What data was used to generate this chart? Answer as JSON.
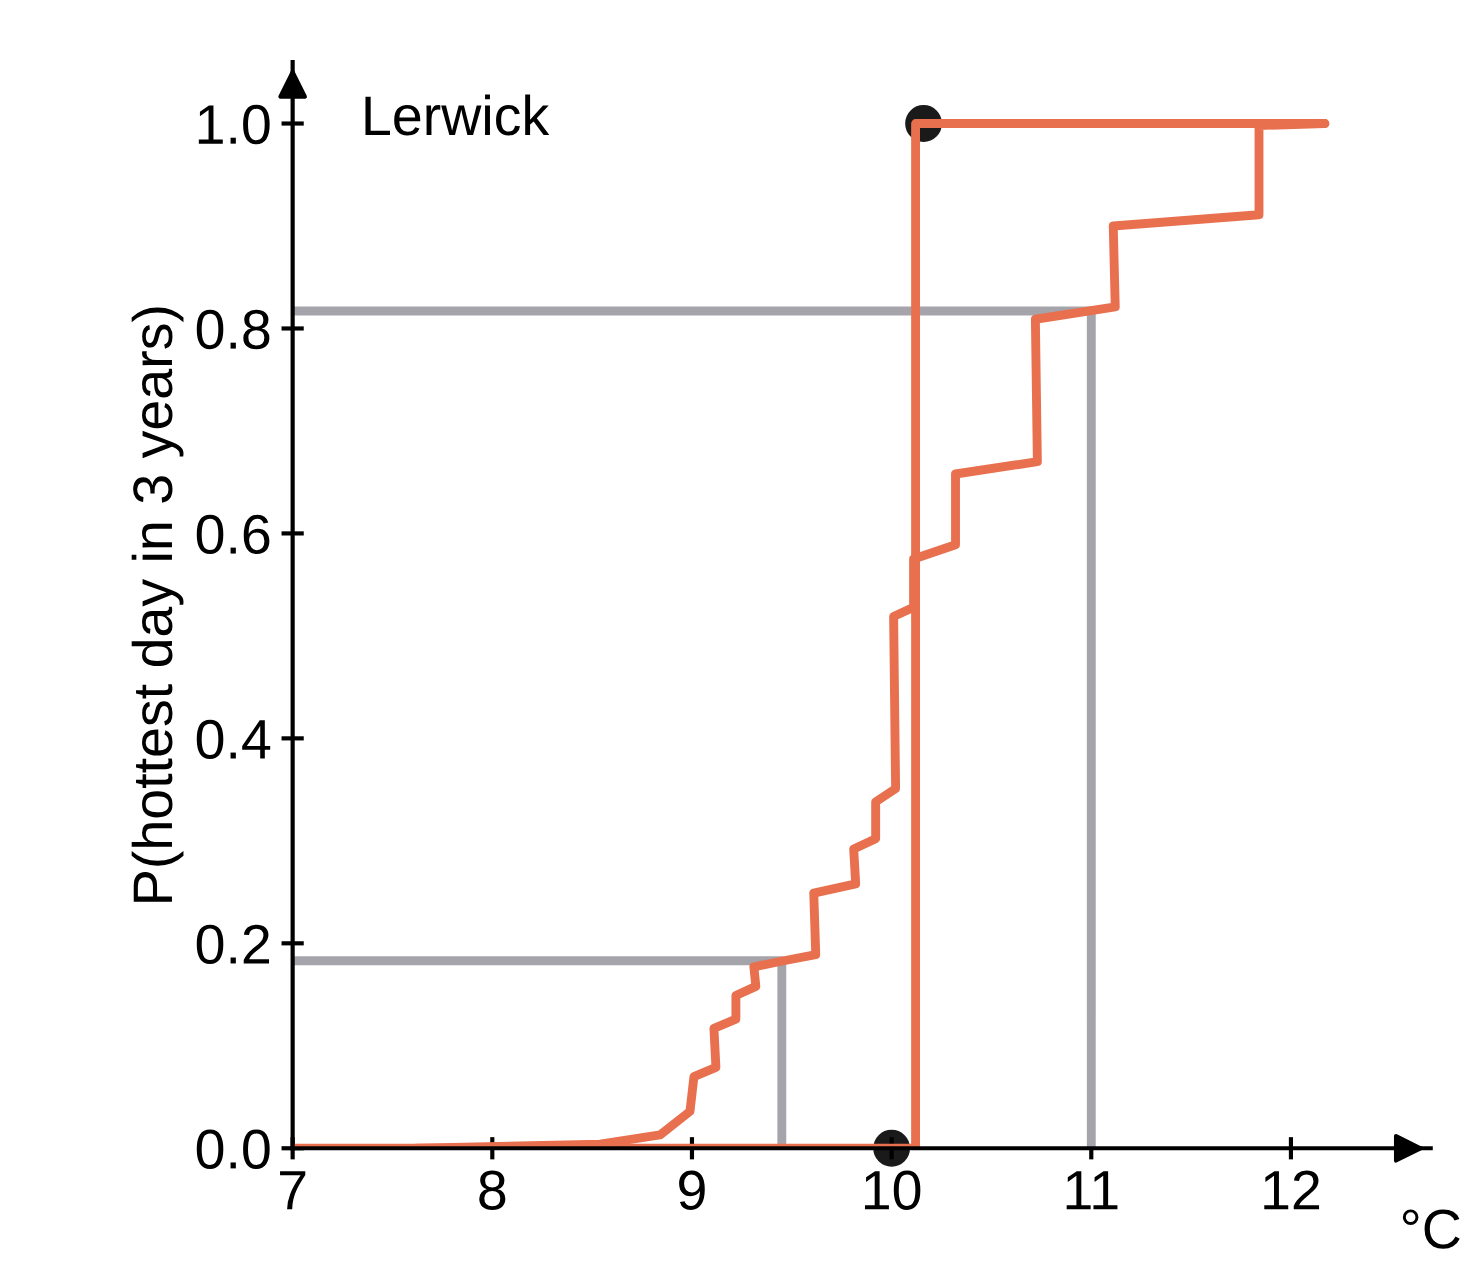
{
  "chart_data": {
    "type": "line",
    "ylabel": "P(hottest day in 3 years)",
    "xlabel": "°C",
    "annotations": [
      "Lerwick"
    ],
    "xlim": [
      7,
      12.7
    ],
    "ylim": [
      0,
      1.06
    ],
    "xticks": [
      7,
      8,
      9,
      10,
      11,
      12
    ],
    "yticks": [
      {
        "value": 0,
        "label": "0.0"
      },
      {
        "value": 0.2,
        "label": "0.2"
      },
      {
        "value": 0.4,
        "label": "0.4"
      },
      {
        "value": 0.6,
        "label": "0.6"
      },
      {
        "value": 0.8,
        "label": "0.8"
      },
      {
        "value": 1.0,
        "label": "1.0"
      }
    ],
    "grid": false,
    "legend": false,
    "series": [
      {
        "color": "#a5a4ab",
        "x": [
          7,
          9.45,
          9.45
        ],
        "values": [
          0.183,
          0.183,
          0
        ]
      },
      {
        "color": "#a5a4ab",
        "x": [
          7,
          11.0,
          11.0
        ],
        "values": [
          0.817,
          0.817,
          0
        ]
      },
      {
        "color": "#e8704f",
        "x": [
          7,
          10.12,
          10.12,
          12.17
        ],
        "values": [
          0,
          0,
          1.0,
          1.0
        ]
      },
      {
        "color": "#e8704f",
        "x": [
          7.62,
          8.54,
          8.84,
          8.99,
          9.01,
          9.12,
          9.11,
          9.22,
          9.22,
          9.32,
          9.31,
          9.46,
          9.62,
          9.61,
          9.82,
          9.81,
          9.92,
          9.92,
          10.02,
          10.01,
          10.11,
          10.11,
          10.32,
          10.32,
          10.73,
          10.72,
          11.12,
          11.11,
          11.84,
          11.84,
          12.17
        ],
        "values": [
          0,
          0.004,
          0.013,
          0.036,
          0.07,
          0.079,
          0.117,
          0.126,
          0.149,
          0.158,
          0.177,
          0.183,
          0.189,
          0.249,
          0.258,
          0.292,
          0.302,
          0.338,
          0.351,
          0.519,
          0.528,
          0.575,
          0.589,
          0.658,
          0.67,
          0.809,
          0.821,
          0.9,
          0.911,
          0.998,
          1.0
        ]
      },
      {
        "type": "scatter",
        "color": "#1a1a1a",
        "x": [
          10,
          10.16
        ],
        "values": [
          0,
          1.0
        ]
      }
    ]
  }
}
